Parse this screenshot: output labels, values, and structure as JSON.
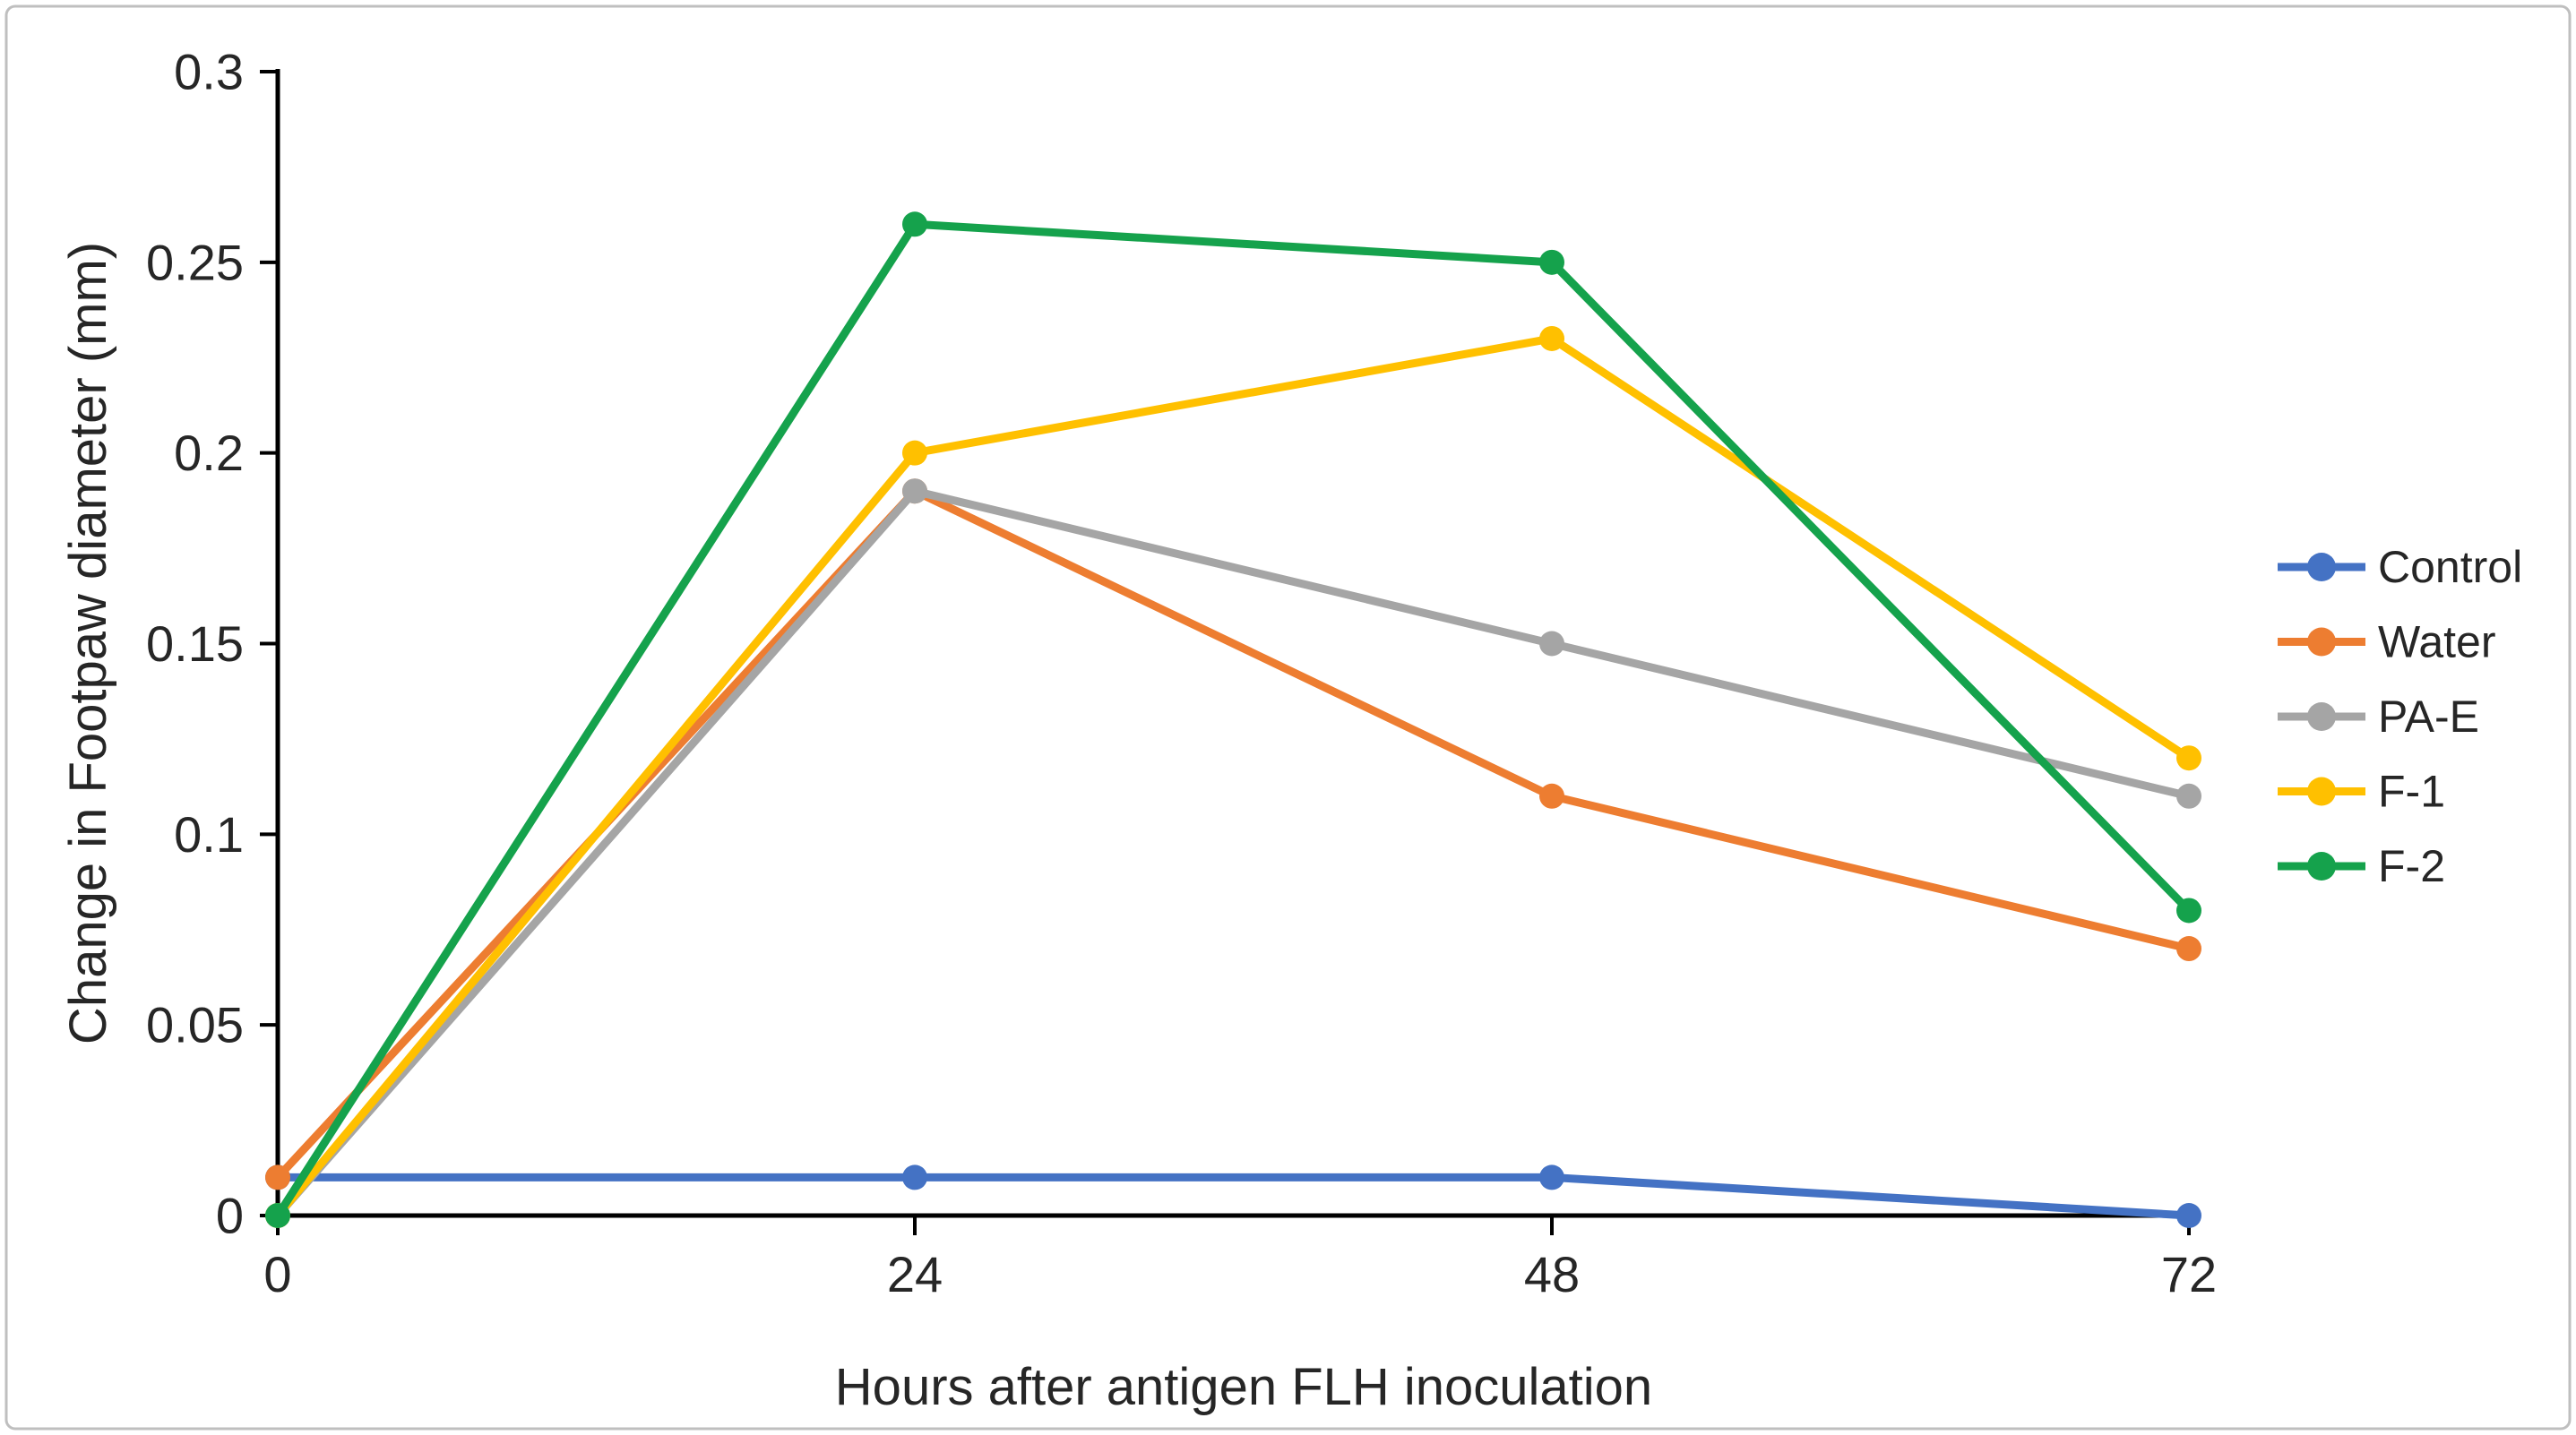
{
  "colors": {
    "axis": "#000000",
    "text": "#262626",
    "border": "#BFBFBF",
    "background": "#FFFFFF"
  },
  "chart_data": {
    "type": "line",
    "title": "",
    "xlabel": "Hours after antigen FLH inoculation",
    "ylabel": "Change in Footpaw diameter (mm)",
    "x": [
      0,
      24,
      48,
      72
    ],
    "x_tick_labels": [
      "0",
      "24",
      "48",
      "72"
    ],
    "ylim": [
      0,
      0.3
    ],
    "y_ticks": [
      0,
      0.05,
      0.1,
      0.15,
      0.2,
      0.25,
      0.3
    ],
    "y_tick_labels": [
      "0",
      "0.05",
      "0.1",
      "0.15",
      "0.2",
      "0.25",
      "0.3"
    ],
    "grid": "off",
    "legend_position": "right",
    "marker": "circle",
    "series": [
      {
        "name": "Control",
        "color": "#4472C4",
        "values": [
          0.01,
          0.01,
          0.01,
          0
        ]
      },
      {
        "name": "Water",
        "color": "#ED7D31",
        "values": [
          0.01,
          0.19,
          0.11,
          0.07
        ]
      },
      {
        "name": "PA-E",
        "color": "#A5A5A5",
        "values": [
          0,
          0.19,
          0.15,
          0.11
        ]
      },
      {
        "name": "F-1",
        "color": "#FFC000",
        "values": [
          0,
          0.2,
          0.23,
          0.12
        ]
      },
      {
        "name": "F-2",
        "color": "#15A24C",
        "values": [
          0,
          0.26,
          0.25,
          0.08
        ]
      }
    ]
  }
}
